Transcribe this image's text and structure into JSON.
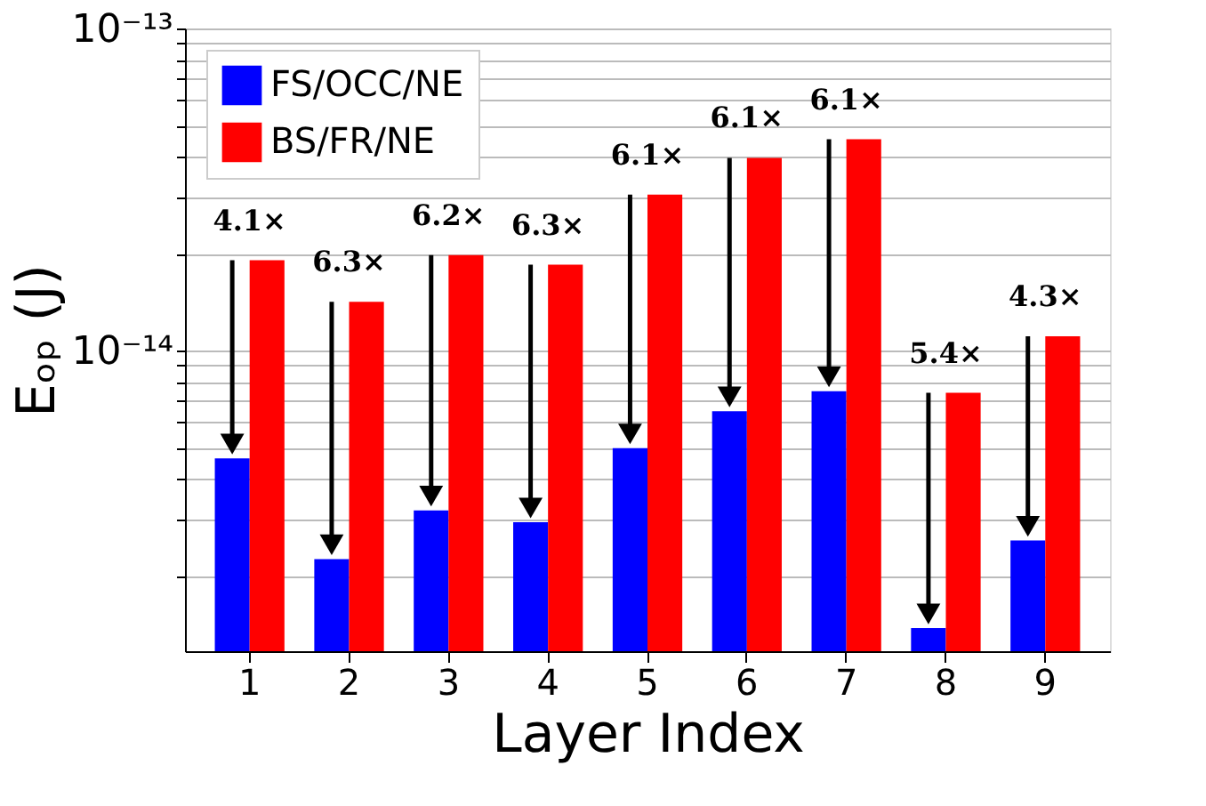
{
  "chart_data": {
    "type": "bar",
    "xlabel": "Layer Index",
    "ylabel": "Eₒₚ (J)",
    "categories": [
      "1",
      "2",
      "3",
      "4",
      "5",
      "6",
      "7",
      "8",
      "9"
    ],
    "series": [
      {
        "name": "FS/OCC/NE",
        "color": "#0000ff",
        "values": [
          4.64e-15,
          2.26e-15,
          3.2e-15,
          2.94e-15,
          4.99e-15,
          6.5e-15,
          7.5e-15,
          1.38e-15,
          2.58e-15
        ]
      },
      {
        "name": "BS/FR/NE",
        "color": "#ff0000",
        "values": [
          1.91e-14,
          1.42e-14,
          1.98e-14,
          1.85e-14,
          3.05e-14,
          3.97e-14,
          4.53e-14,
          7.41e-15,
          1.11e-14
        ]
      }
    ],
    "log": true,
    "ylim": [
      1.17e-15,
      1e-13
    ],
    "yticks": [
      {
        "value": 2e-15,
        "label": null
      },
      {
        "value": 3e-15,
        "label": null
      },
      {
        "value": 4e-15,
        "label": null
      },
      {
        "value": 5e-15,
        "label": null
      },
      {
        "value": 6e-15,
        "label": null
      },
      {
        "value": 7e-15,
        "label": null
      },
      {
        "value": 8e-15,
        "label": null
      },
      {
        "value": 9e-15,
        "label": null
      },
      {
        "value": 1e-14,
        "label": "10⁻¹⁴"
      },
      {
        "value": 2e-14,
        "label": null
      },
      {
        "value": 3e-14,
        "label": null
      },
      {
        "value": 4e-14,
        "label": null
      },
      {
        "value": 5e-14,
        "label": null
      },
      {
        "value": 6e-14,
        "label": null
      },
      {
        "value": 7e-14,
        "label": null
      },
      {
        "value": 8e-14,
        "label": null
      },
      {
        "value": 9e-14,
        "label": null
      },
      {
        "value": 1e-13,
        "label": "10⁻¹³"
      }
    ],
    "grid": "y",
    "legend": "top left",
    "annotations": [
      {
        "text": "4.1×",
        "x": "1",
        "y": 1.91e-14
      },
      {
        "text": "6.3×",
        "x": "2",
        "y": 1.42e-14
      },
      {
        "text": "6.2×",
        "x": "3",
        "y": 1.98e-14
      },
      {
        "text": "6.3×",
        "x": "4",
        "y": 1.85e-14
      },
      {
        "text": "6.1×",
        "x": "5",
        "y": 3.05e-14
      },
      {
        "text": "6.1×",
        "x": "6",
        "y": 3.97e-14
      },
      {
        "text": "6.1×",
        "x": "7",
        "y": 4.53e-14
      },
      {
        "text": "5.4×",
        "x": "8",
        "y": 7.41e-15
      },
      {
        "text": "4.3×",
        "x": "9",
        "y": 1.11e-14
      }
    ]
  }
}
